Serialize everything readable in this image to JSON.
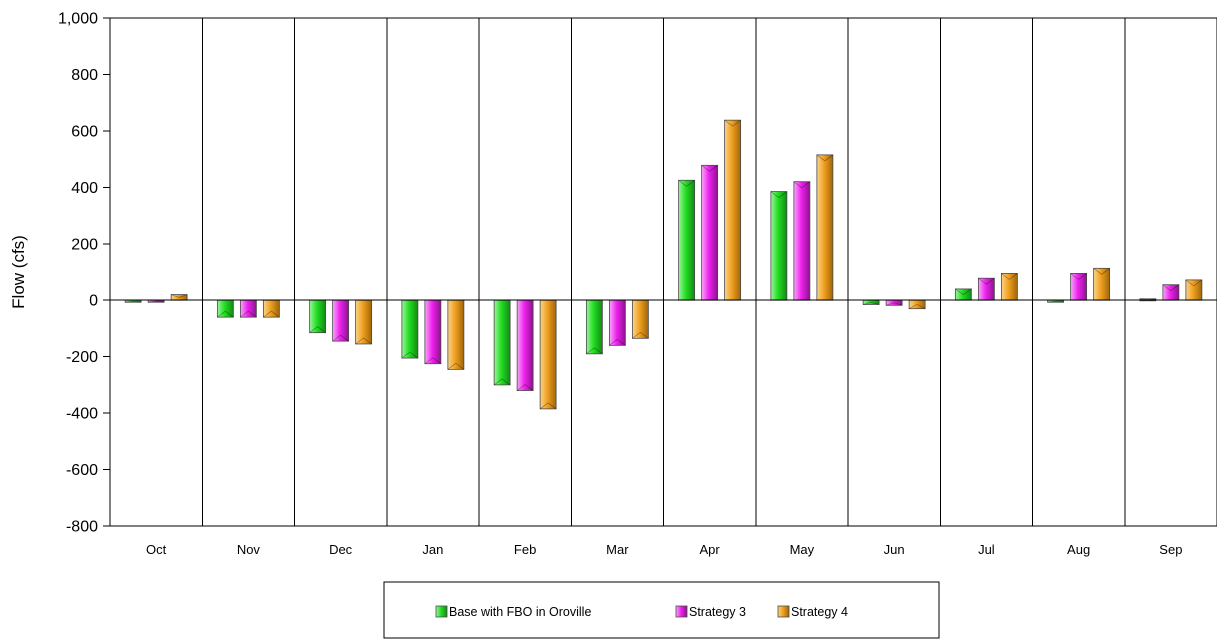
{
  "chart_data": {
    "type": "bar",
    "title": "",
    "xlabel": "",
    "ylabel": "Flow (cfs)",
    "ylim": [
      -800,
      1000
    ],
    "ytick_step": 200,
    "ytick_labels": [
      "-800",
      "-600",
      "-400",
      "-200",
      "0",
      "200",
      "400",
      "600",
      "800",
      "1,000"
    ],
    "grid": "vertical category separators",
    "legend_position": "bottom",
    "categories": [
      "Oct",
      "Nov",
      "Dec",
      "Jan",
      "Feb",
      "Mar",
      "Apr",
      "May",
      "Jun",
      "Jul",
      "Aug",
      "Sep"
    ],
    "series": [
      {
        "name": "Base with FBO in Oroville",
        "color": "#22dd22",
        "values": [
          -3,
          -60,
          -115,
          -205,
          -300,
          -190,
          425,
          385,
          -15,
          40,
          -3,
          5
        ]
      },
      {
        "name": "Strategy 3",
        "color": "#ee22ee",
        "values": [
          -3,
          -60,
          -145,
          -225,
          -320,
          -160,
          478,
          420,
          -18,
          78,
          95,
          55
        ]
      },
      {
        "name": "Strategy 4",
        "color": "#f0a020",
        "values": [
          20,
          -60,
          -155,
          -245,
          -385,
          -135,
          638,
          515,
          -30,
          95,
          113,
          72
        ]
      }
    ]
  }
}
